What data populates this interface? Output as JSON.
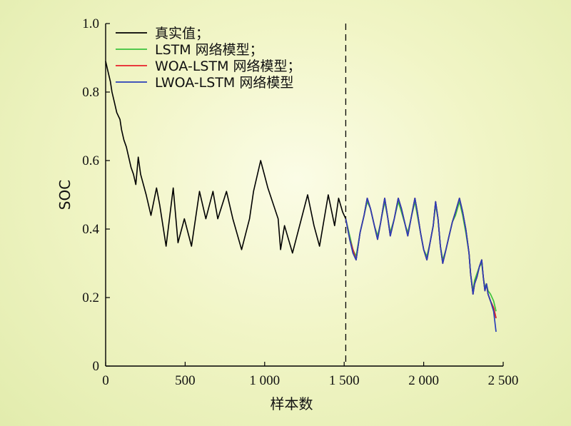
{
  "chart_data": {
    "type": "line",
    "xlabel": "样本数",
    "ylabel": "SOC",
    "xlim": [
      0,
      2500
    ],
    "ylim": [
      0,
      1.0
    ],
    "x_ticks": [
      0,
      500,
      1000,
      1500,
      2000,
      2500
    ],
    "x_tick_labels": [
      "0",
      "500",
      "1 000",
      "1 500",
      "2 000",
      "2 500"
    ],
    "y_ticks": [
      0,
      0.2,
      0.4,
      0.6,
      0.8,
      1.0
    ],
    "y_tick_labels": [
      "0",
      "0.2",
      "0.4",
      "0.6",
      "0.8",
      "1.0"
    ],
    "grid": false,
    "legend_position": "top-left",
    "split_marker_x": 1510,
    "colors": {
      "true": "#000000",
      "lstm": "#3cc23c",
      "woa": "#e8202a",
      "lwoa": "#2a3fb8"
    },
    "series": [
      {
        "name": "真实值；",
        "key": "true",
        "points": [
          [
            0,
            0.89
          ],
          [
            15,
            0.86
          ],
          [
            30,
            0.83
          ],
          [
            40,
            0.8
          ],
          [
            55,
            0.77
          ],
          [
            70,
            0.74
          ],
          [
            90,
            0.72
          ],
          [
            100,
            0.69
          ],
          [
            115,
            0.66
          ],
          [
            130,
            0.64
          ],
          [
            145,
            0.61
          ],
          [
            160,
            0.58
          ],
          [
            175,
            0.56
          ],
          [
            190,
            0.53
          ],
          [
            205,
            0.61
          ],
          [
            220,
            0.56
          ],
          [
            255,
            0.5
          ],
          [
            285,
            0.44
          ],
          [
            320,
            0.52
          ],
          [
            340,
            0.47
          ],
          [
            380,
            0.35
          ],
          [
            425,
            0.52
          ],
          [
            455,
            0.36
          ],
          [
            495,
            0.43
          ],
          [
            540,
            0.35
          ],
          [
            590,
            0.51
          ],
          [
            630,
            0.43
          ],
          [
            675,
            0.51
          ],
          [
            705,
            0.43
          ],
          [
            760,
            0.51
          ],
          [
            800,
            0.43
          ],
          [
            855,
            0.34
          ],
          [
            905,
            0.43
          ],
          [
            930,
            0.51
          ],
          [
            975,
            0.6
          ],
          [
            1020,
            0.52
          ],
          [
            1085,
            0.43
          ],
          [
            1100,
            0.34
          ],
          [
            1125,
            0.41
          ],
          [
            1175,
            0.33
          ],
          [
            1270,
            0.5
          ],
          [
            1310,
            0.41
          ],
          [
            1345,
            0.35
          ],
          [
            1400,
            0.5
          ],
          [
            1440,
            0.41
          ],
          [
            1465,
            0.49
          ],
          [
            1490,
            0.45
          ],
          [
            1510,
            0.43
          ],
          [
            1535,
            0.37
          ],
          [
            1555,
            0.33
          ],
          [
            1575,
            0.31
          ],
          [
            1600,
            0.39
          ],
          [
            1625,
            0.44
          ],
          [
            1645,
            0.49
          ],
          [
            1665,
            0.46
          ],
          [
            1690,
            0.41
          ],
          [
            1710,
            0.37
          ],
          [
            1730,
            0.42
          ],
          [
            1755,
            0.49
          ],
          [
            1775,
            0.43
          ],
          [
            1790,
            0.38
          ],
          [
            1815,
            0.43
          ],
          [
            1840,
            0.49
          ],
          [
            1860,
            0.46
          ],
          [
            1885,
            0.41
          ],
          [
            1900,
            0.38
          ],
          [
            1920,
            0.43
          ],
          [
            1945,
            0.49
          ],
          [
            1960,
            0.45
          ],
          [
            1980,
            0.39
          ],
          [
            2000,
            0.34
          ],
          [
            2020,
            0.31
          ],
          [
            2040,
            0.36
          ],
          [
            2060,
            0.41
          ],
          [
            2075,
            0.48
          ],
          [
            2090,
            0.43
          ],
          [
            2105,
            0.35
          ],
          [
            2120,
            0.3
          ],
          [
            2140,
            0.34
          ],
          [
            2160,
            0.38
          ],
          [
            2180,
            0.42
          ],
          [
            2200,
            0.45
          ],
          [
            2225,
            0.49
          ],
          [
            2245,
            0.45
          ],
          [
            2265,
            0.4
          ],
          [
            2285,
            0.33
          ],
          [
            2295,
            0.27
          ],
          [
            2310,
            0.21
          ],
          [
            2320,
            0.24
          ],
          [
            2335,
            0.26
          ],
          [
            2350,
            0.29
          ],
          [
            2365,
            0.31
          ],
          [
            2375,
            0.26
          ],
          [
            2385,
            0.22
          ],
          [
            2395,
            0.24
          ],
          [
            2405,
            0.21
          ],
          [
            2420,
            0.19
          ],
          [
            2440,
            0.17
          ],
          [
            2455,
            0.14
          ]
        ]
      },
      {
        "name": "LSTM 网络模型；",
        "key": "lstm",
        "points": [
          [
            1510,
            0.43
          ],
          [
            1535,
            0.38
          ],
          [
            1555,
            0.34
          ],
          [
            1575,
            0.32
          ],
          [
            1600,
            0.39
          ],
          [
            1625,
            0.44
          ],
          [
            1645,
            0.48
          ],
          [
            1665,
            0.46
          ],
          [
            1690,
            0.41
          ],
          [
            1710,
            0.38
          ],
          [
            1730,
            0.42
          ],
          [
            1755,
            0.48
          ],
          [
            1775,
            0.43
          ],
          [
            1790,
            0.39
          ],
          [
            1815,
            0.43
          ],
          [
            1840,
            0.48
          ],
          [
            1860,
            0.45
          ],
          [
            1885,
            0.41
          ],
          [
            1900,
            0.39
          ],
          [
            1920,
            0.43
          ],
          [
            1945,
            0.48
          ],
          [
            1960,
            0.44
          ],
          [
            1980,
            0.39
          ],
          [
            2000,
            0.34
          ],
          [
            2020,
            0.32
          ],
          [
            2040,
            0.36
          ],
          [
            2060,
            0.41
          ],
          [
            2075,
            0.47
          ],
          [
            2090,
            0.43
          ],
          [
            2105,
            0.35
          ],
          [
            2120,
            0.31
          ],
          [
            2140,
            0.34
          ],
          [
            2160,
            0.38
          ],
          [
            2180,
            0.42
          ],
          [
            2200,
            0.44
          ],
          [
            2225,
            0.48
          ],
          [
            2245,
            0.44
          ],
          [
            2265,
            0.39
          ],
          [
            2285,
            0.33
          ],
          [
            2295,
            0.27
          ],
          [
            2310,
            0.22
          ],
          [
            2320,
            0.25
          ],
          [
            2335,
            0.27
          ],
          [
            2350,
            0.29
          ],
          [
            2365,
            0.3
          ],
          [
            2375,
            0.26
          ],
          [
            2385,
            0.23
          ],
          [
            2395,
            0.24
          ],
          [
            2405,
            0.22
          ],
          [
            2420,
            0.21
          ],
          [
            2440,
            0.19
          ],
          [
            2455,
            0.16
          ]
        ]
      },
      {
        "name": "WOA-LSTM 网络模型；",
        "key": "woa",
        "points": [
          [
            1510,
            0.43
          ],
          [
            1535,
            0.37
          ],
          [
            1555,
            0.34
          ],
          [
            1575,
            0.31
          ],
          [
            1600,
            0.39
          ],
          [
            1625,
            0.44
          ],
          [
            1645,
            0.49
          ],
          [
            1665,
            0.46
          ],
          [
            1690,
            0.41
          ],
          [
            1710,
            0.37
          ],
          [
            1730,
            0.42
          ],
          [
            1755,
            0.49
          ],
          [
            1775,
            0.43
          ],
          [
            1790,
            0.38
          ],
          [
            1815,
            0.43
          ],
          [
            1840,
            0.49
          ],
          [
            1860,
            0.46
          ],
          [
            1885,
            0.41
          ],
          [
            1900,
            0.38
          ],
          [
            1920,
            0.43
          ],
          [
            1945,
            0.49
          ],
          [
            1960,
            0.45
          ],
          [
            1980,
            0.39
          ],
          [
            2000,
            0.34
          ],
          [
            2020,
            0.31
          ],
          [
            2040,
            0.36
          ],
          [
            2060,
            0.41
          ],
          [
            2075,
            0.48
          ],
          [
            2090,
            0.43
          ],
          [
            2105,
            0.35
          ],
          [
            2120,
            0.3
          ],
          [
            2140,
            0.34
          ],
          [
            2160,
            0.38
          ],
          [
            2180,
            0.42
          ],
          [
            2200,
            0.45
          ],
          [
            2225,
            0.49
          ],
          [
            2245,
            0.45
          ],
          [
            2265,
            0.4
          ],
          [
            2285,
            0.33
          ],
          [
            2295,
            0.27
          ],
          [
            2310,
            0.21
          ],
          [
            2320,
            0.24
          ],
          [
            2335,
            0.26
          ],
          [
            2350,
            0.29
          ],
          [
            2365,
            0.31
          ],
          [
            2375,
            0.26
          ],
          [
            2385,
            0.22
          ],
          [
            2395,
            0.24
          ],
          [
            2405,
            0.21
          ],
          [
            2420,
            0.19
          ],
          [
            2440,
            0.17
          ],
          [
            2455,
            0.14
          ]
        ]
      },
      {
        "name": "LWOA-LSTM 网络模型",
        "key": "lwoa",
        "points": [
          [
            1510,
            0.43
          ],
          [
            1535,
            0.37
          ],
          [
            1555,
            0.33
          ],
          [
            1575,
            0.31
          ],
          [
            1600,
            0.39
          ],
          [
            1625,
            0.44
          ],
          [
            1645,
            0.49
          ],
          [
            1665,
            0.46
          ],
          [
            1690,
            0.41
          ],
          [
            1710,
            0.37
          ],
          [
            1730,
            0.42
          ],
          [
            1755,
            0.49
          ],
          [
            1775,
            0.43
          ],
          [
            1790,
            0.38
          ],
          [
            1815,
            0.43
          ],
          [
            1840,
            0.49
          ],
          [
            1860,
            0.46
          ],
          [
            1885,
            0.41
          ],
          [
            1900,
            0.38
          ],
          [
            1920,
            0.43
          ],
          [
            1945,
            0.49
          ],
          [
            1960,
            0.45
          ],
          [
            1980,
            0.39
          ],
          [
            2000,
            0.34
          ],
          [
            2020,
            0.31
          ],
          [
            2040,
            0.36
          ],
          [
            2060,
            0.41
          ],
          [
            2075,
            0.48
          ],
          [
            2090,
            0.43
          ],
          [
            2105,
            0.35
          ],
          [
            2120,
            0.3
          ],
          [
            2140,
            0.34
          ],
          [
            2160,
            0.38
          ],
          [
            2180,
            0.42
          ],
          [
            2200,
            0.45
          ],
          [
            2225,
            0.49
          ],
          [
            2245,
            0.45
          ],
          [
            2265,
            0.4
          ],
          [
            2285,
            0.33
          ],
          [
            2295,
            0.27
          ],
          [
            2310,
            0.21
          ],
          [
            2320,
            0.24
          ],
          [
            2335,
            0.26
          ],
          [
            2350,
            0.29
          ],
          [
            2365,
            0.31
          ],
          [
            2375,
            0.26
          ],
          [
            2385,
            0.22
          ],
          [
            2395,
            0.24
          ],
          [
            2405,
            0.21
          ],
          [
            2420,
            0.19
          ],
          [
            2440,
            0.16
          ],
          [
            2455,
            0.1
          ]
        ]
      }
    ]
  }
}
